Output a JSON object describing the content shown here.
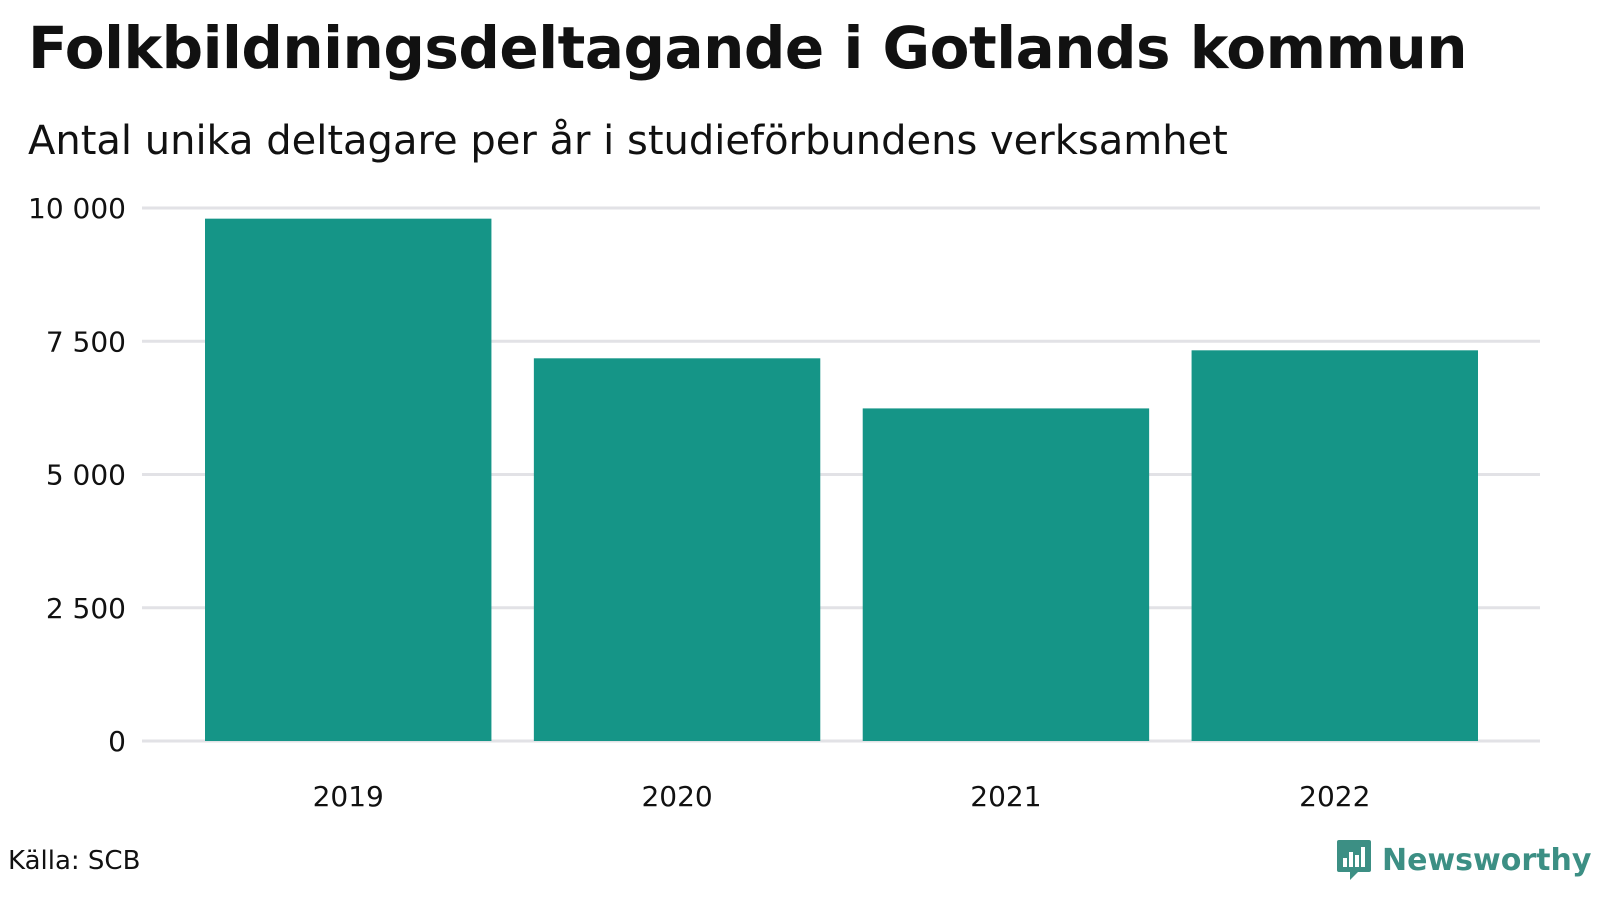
{
  "title": "Folkbildningsdeltagande i Gotlands kommun",
  "subtitle": "Antal unika deltagare per år i studieförbundens verksamhet",
  "source": "Källa: SCB",
  "brand": {
    "name": "Newsworthy",
    "logo_icon": "bar-chart-speech-bubble-icon"
  },
  "colors": {
    "bar": "#159587",
    "grid": "#e2e2e6",
    "brand": "#3c8f84",
    "text": "#111111"
  },
  "chart_data": {
    "type": "bar",
    "title": "Folkbildningsdeltagande i Gotlands kommun",
    "subtitle": "Antal unika deltagare per år i studieförbundens verksamhet",
    "xlabel": "",
    "ylabel": "",
    "categories": [
      "2019",
      "2020",
      "2021",
      "2022"
    ],
    "values": [
      9800,
      7180,
      6240,
      7330
    ],
    "ylim": [
      0,
      10000
    ],
    "yticks": [
      0,
      2500,
      5000,
      7500,
      10000
    ],
    "ytick_labels": [
      "0",
      "2 500",
      "5 000",
      "7 500",
      "10 000"
    ],
    "grid": true,
    "legend": "none"
  }
}
